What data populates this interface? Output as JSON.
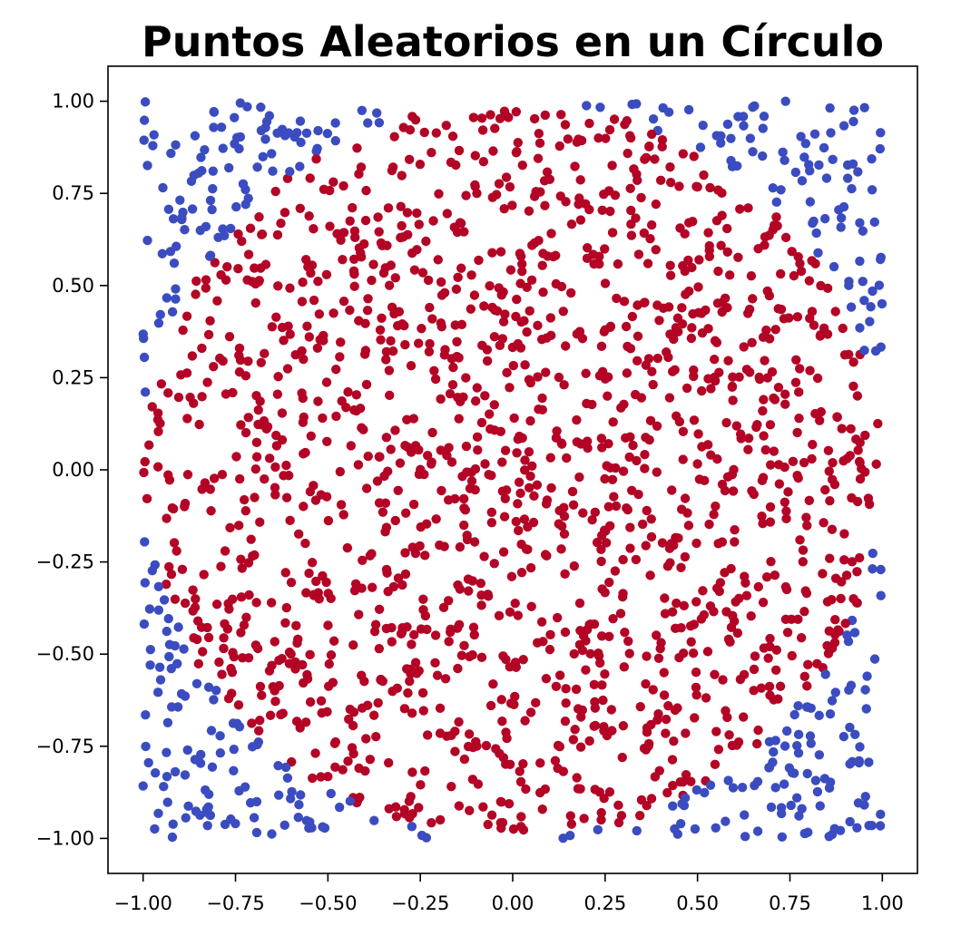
{
  "chart_data": {
    "type": "scatter",
    "title": "Puntos Aleatorios en un Círculo",
    "xlabel": "",
    "ylabel": "",
    "xlim": [
      -1.095,
      1.095
    ],
    "ylim": [
      -1.095,
      1.095
    ],
    "xticks": [
      -1.0,
      -0.75,
      -0.5,
      -0.25,
      0.0,
      0.25,
      0.5,
      0.75,
      1.0
    ],
    "xtick_labels": [
      "−1.00",
      "−0.75",
      "−0.50",
      "−0.25",
      "0.00",
      "0.25",
      "0.50",
      "0.75",
      "1.00"
    ],
    "yticks": [
      -1.0,
      -0.75,
      -0.5,
      -0.25,
      0.0,
      0.25,
      0.5,
      0.75,
      1.0
    ],
    "ytick_labels": [
      "−1.00",
      "−0.75",
      "−0.50",
      "−0.25",
      "0.00",
      "0.25",
      "0.50",
      "0.75",
      "1.00"
    ],
    "grid": false,
    "legend": "none",
    "point_count": 2000,
    "x_range": [
      -1,
      1
    ],
    "y_range": [
      -1,
      1
    ],
    "circle": {
      "center": [
        0,
        0
      ],
      "radius": 1
    },
    "colors": {
      "inside": "#b40426",
      "outside": "#3b4cc0"
    },
    "color_rule": "x^2 + y^2 <= 1 → inside color; otherwise outside color",
    "seed": 20240917
  }
}
